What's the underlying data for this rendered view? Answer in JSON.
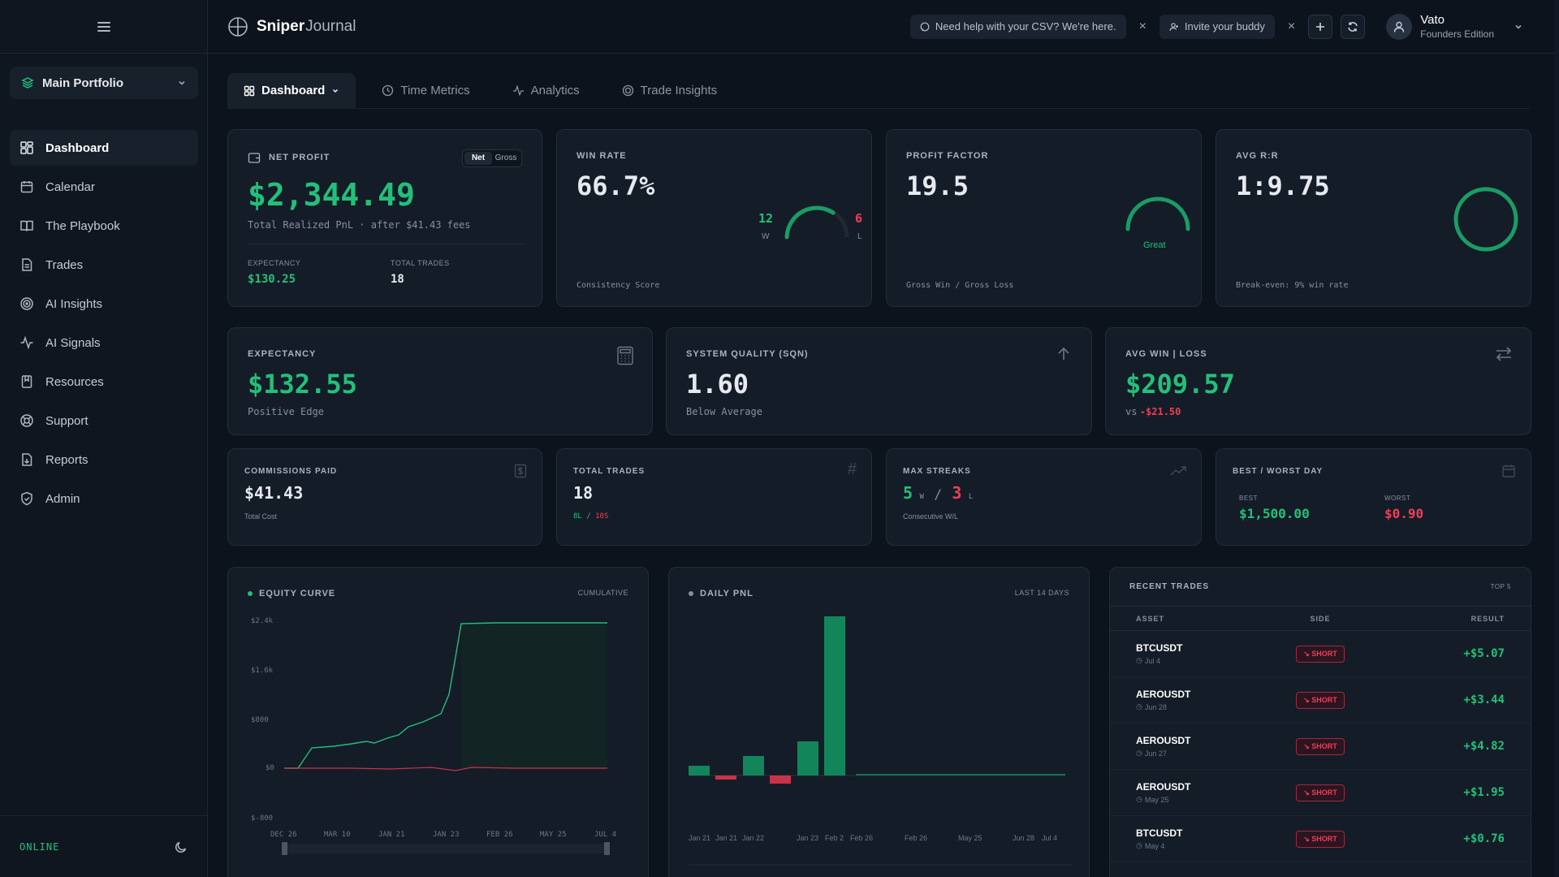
{
  "app": {
    "brand_a": "Sniper",
    "brand_b": "Journal"
  },
  "sidebar": {
    "portfolio": "Main Portfolio",
    "items": [
      {
        "label": "Dashboard",
        "icon": "dashboard-icon"
      },
      {
        "label": "Calendar",
        "icon": "calendar-icon"
      },
      {
        "label": "The Playbook",
        "icon": "book-icon"
      },
      {
        "label": "Trades",
        "icon": "document-icon"
      },
      {
        "label": "AI Insights",
        "icon": "target-icon"
      },
      {
        "label": "AI Signals",
        "icon": "pulse-icon"
      },
      {
        "label": "Resources",
        "icon": "bookmark-icon"
      },
      {
        "label": "Support",
        "icon": "lifebuoy-icon"
      },
      {
        "label": "Reports",
        "icon": "report-icon"
      },
      {
        "label": "Admin",
        "icon": "shield-icon"
      }
    ],
    "status": "ONLINE"
  },
  "topbar": {
    "help_pill": "Need help with your CSV? We're here.",
    "invite_pill": "Invite your buddy",
    "user_name": "Vato",
    "user_role": "Founders Edition"
  },
  "tabs": [
    "Dashboard",
    "Time Metrics",
    "Analytics",
    "Trade Insights"
  ],
  "net_profit": {
    "label": "NET PROFIT",
    "toggle_net": "Net",
    "toggle_gross": "Gross",
    "value": "$2,344.49",
    "sub": "Total Realized PnL · after $41.43 fees",
    "expectancy_label": "EXPECTANCY",
    "expectancy": "$130.25",
    "trades_label": "TOTAL TRADES",
    "trades": "18"
  },
  "win_rate": {
    "label": "WIN RATE",
    "value": "66.7%",
    "wins": "12",
    "w": "W",
    "losses": "6",
    "l": "L",
    "footer": "Consistency Score"
  },
  "profit_factor": {
    "label": "PROFIT FACTOR",
    "value": "19.5",
    "rating": "Great",
    "footer": "Gross Win / Gross Loss"
  },
  "avg_rr": {
    "label": "AVG R:R",
    "value": "1:9.75",
    "footer": "Break-even: 9% win rate"
  },
  "expectancy_card": {
    "label": "EXPECTANCY",
    "value": "$132.55",
    "sub": "Positive Edge"
  },
  "sqn": {
    "label": "SYSTEM QUALITY (SQN)",
    "value": "1.60",
    "sub": "Below Average"
  },
  "avg_winloss": {
    "label": "AVG WIN | LOSS",
    "value": "$209.57",
    "vs": "vs",
    "loss": "-$21.50"
  },
  "commissions": {
    "label": "COMMISSIONS PAID",
    "value": "$41.43",
    "sub": "Total Cost"
  },
  "total_trades": {
    "label": "TOTAL TRADES",
    "value": "18",
    "long": "8L",
    "sep": "/",
    "short": "10S"
  },
  "streaks": {
    "label": "MAX STREAKS",
    "win": "5",
    "w": "W",
    "sep": "/",
    "loss": "3",
    "l": "L",
    "sub": "Consecutive W/L"
  },
  "best_worst": {
    "label": "BEST / WORST DAY",
    "best_label": "BEST",
    "best": "$1,500.00",
    "worst_label": "WORST",
    "worst": "$0.90"
  },
  "equity": {
    "title": "EQUITY CURVE",
    "tag": "CUMULATIVE",
    "yticks": [
      "$2.4k",
      "$1.6k",
      "$800",
      "$0",
      "$-800"
    ],
    "xticks": [
      "DEC 26",
      "MAR 10",
      "JAN 21",
      "JAN 23",
      "FEB 26",
      "MAY 25",
      "JUL 4"
    ]
  },
  "daily": {
    "title": "DAILY PNL",
    "tag": "LAST 14 DAYS",
    "xticks": [
      "Jan 21",
      "Jan 21",
      "Jan 22",
      "Jan 23",
      "Feb 2",
      "Feb 26",
      "Feb 26",
      "May 25",
      "Jun 28",
      "Jul 4"
    ]
  },
  "recent": {
    "title": "RECENT TRADES",
    "tag": "TOP 5",
    "cols": [
      "ASSET",
      "SIDE",
      "RESULT"
    ],
    "rows": [
      {
        "asset": "BTCUSDT",
        "date": "Jul 4",
        "side": "SHORT",
        "result": "+$5.07"
      },
      {
        "asset": "AEROUSDT",
        "date": "Jun 28",
        "side": "SHORT",
        "result": "+$3.44"
      },
      {
        "asset": "AEROUSDT",
        "date": "Jun 27",
        "side": "SHORT",
        "result": "+$4.82"
      },
      {
        "asset": "AEROUSDT",
        "date": "May 25",
        "side": "SHORT",
        "result": "+$1.95"
      },
      {
        "asset": "BTCUSDT",
        "date": "May 4",
        "side": "SHORT",
        "result": "+$0.76"
      }
    ]
  },
  "colors": {
    "green": "#22c07a",
    "red": "#ef3e55",
    "bg": "#0d131d",
    "card": "#141c27"
  }
}
